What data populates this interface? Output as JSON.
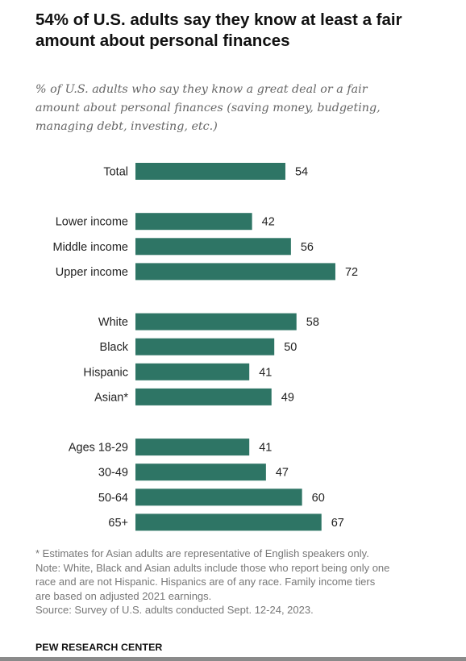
{
  "title": "54% of U.S. adults say they know at least a fair amount about personal finances",
  "subtitle": "% of U.S. adults who say they know a great deal or a fair amount about personal finances (saving money, budgeting, managing debt, investing, etc.)",
  "colors": {
    "bar": "#2e7565"
  },
  "chart_data": {
    "type": "bar",
    "orientation": "horizontal",
    "groups": [
      [
        {
          "label": "Total",
          "value": 54
        }
      ],
      [
        {
          "label": "Lower income",
          "value": 42
        },
        {
          "label": "Middle income",
          "value": 56
        },
        {
          "label": "Upper income",
          "value": 72
        }
      ],
      [
        {
          "label": "White",
          "value": 58
        },
        {
          "label": "Black",
          "value": 50
        },
        {
          "label": "Hispanic",
          "value": 41
        },
        {
          "label": "Asian*",
          "value": 49
        }
      ],
      [
        {
          "label": "Ages 18-29",
          "value": 41
        },
        {
          "label": "30-49",
          "value": 47
        },
        {
          "label": "50-64",
          "value": 60
        },
        {
          "label": "65+",
          "value": 67
        }
      ]
    ],
    "xlim": [
      0,
      100
    ],
    "data_labels": true,
    "axis_visible": false,
    "grid": false,
    "legend": "none"
  },
  "footnotes": [
    "* Estimates for Asian adults are representative of English speakers only.",
    "Note: White, Black and Asian adults include those who report being only one race and are not Hispanic. Hispanics are of any race. Family income tiers are based on adjusted 2021 earnings.",
    "Source: Survey of U.S. adults conducted Sept. 12-24, 2023."
  ],
  "source_brand": "PEW RESEARCH CENTER"
}
